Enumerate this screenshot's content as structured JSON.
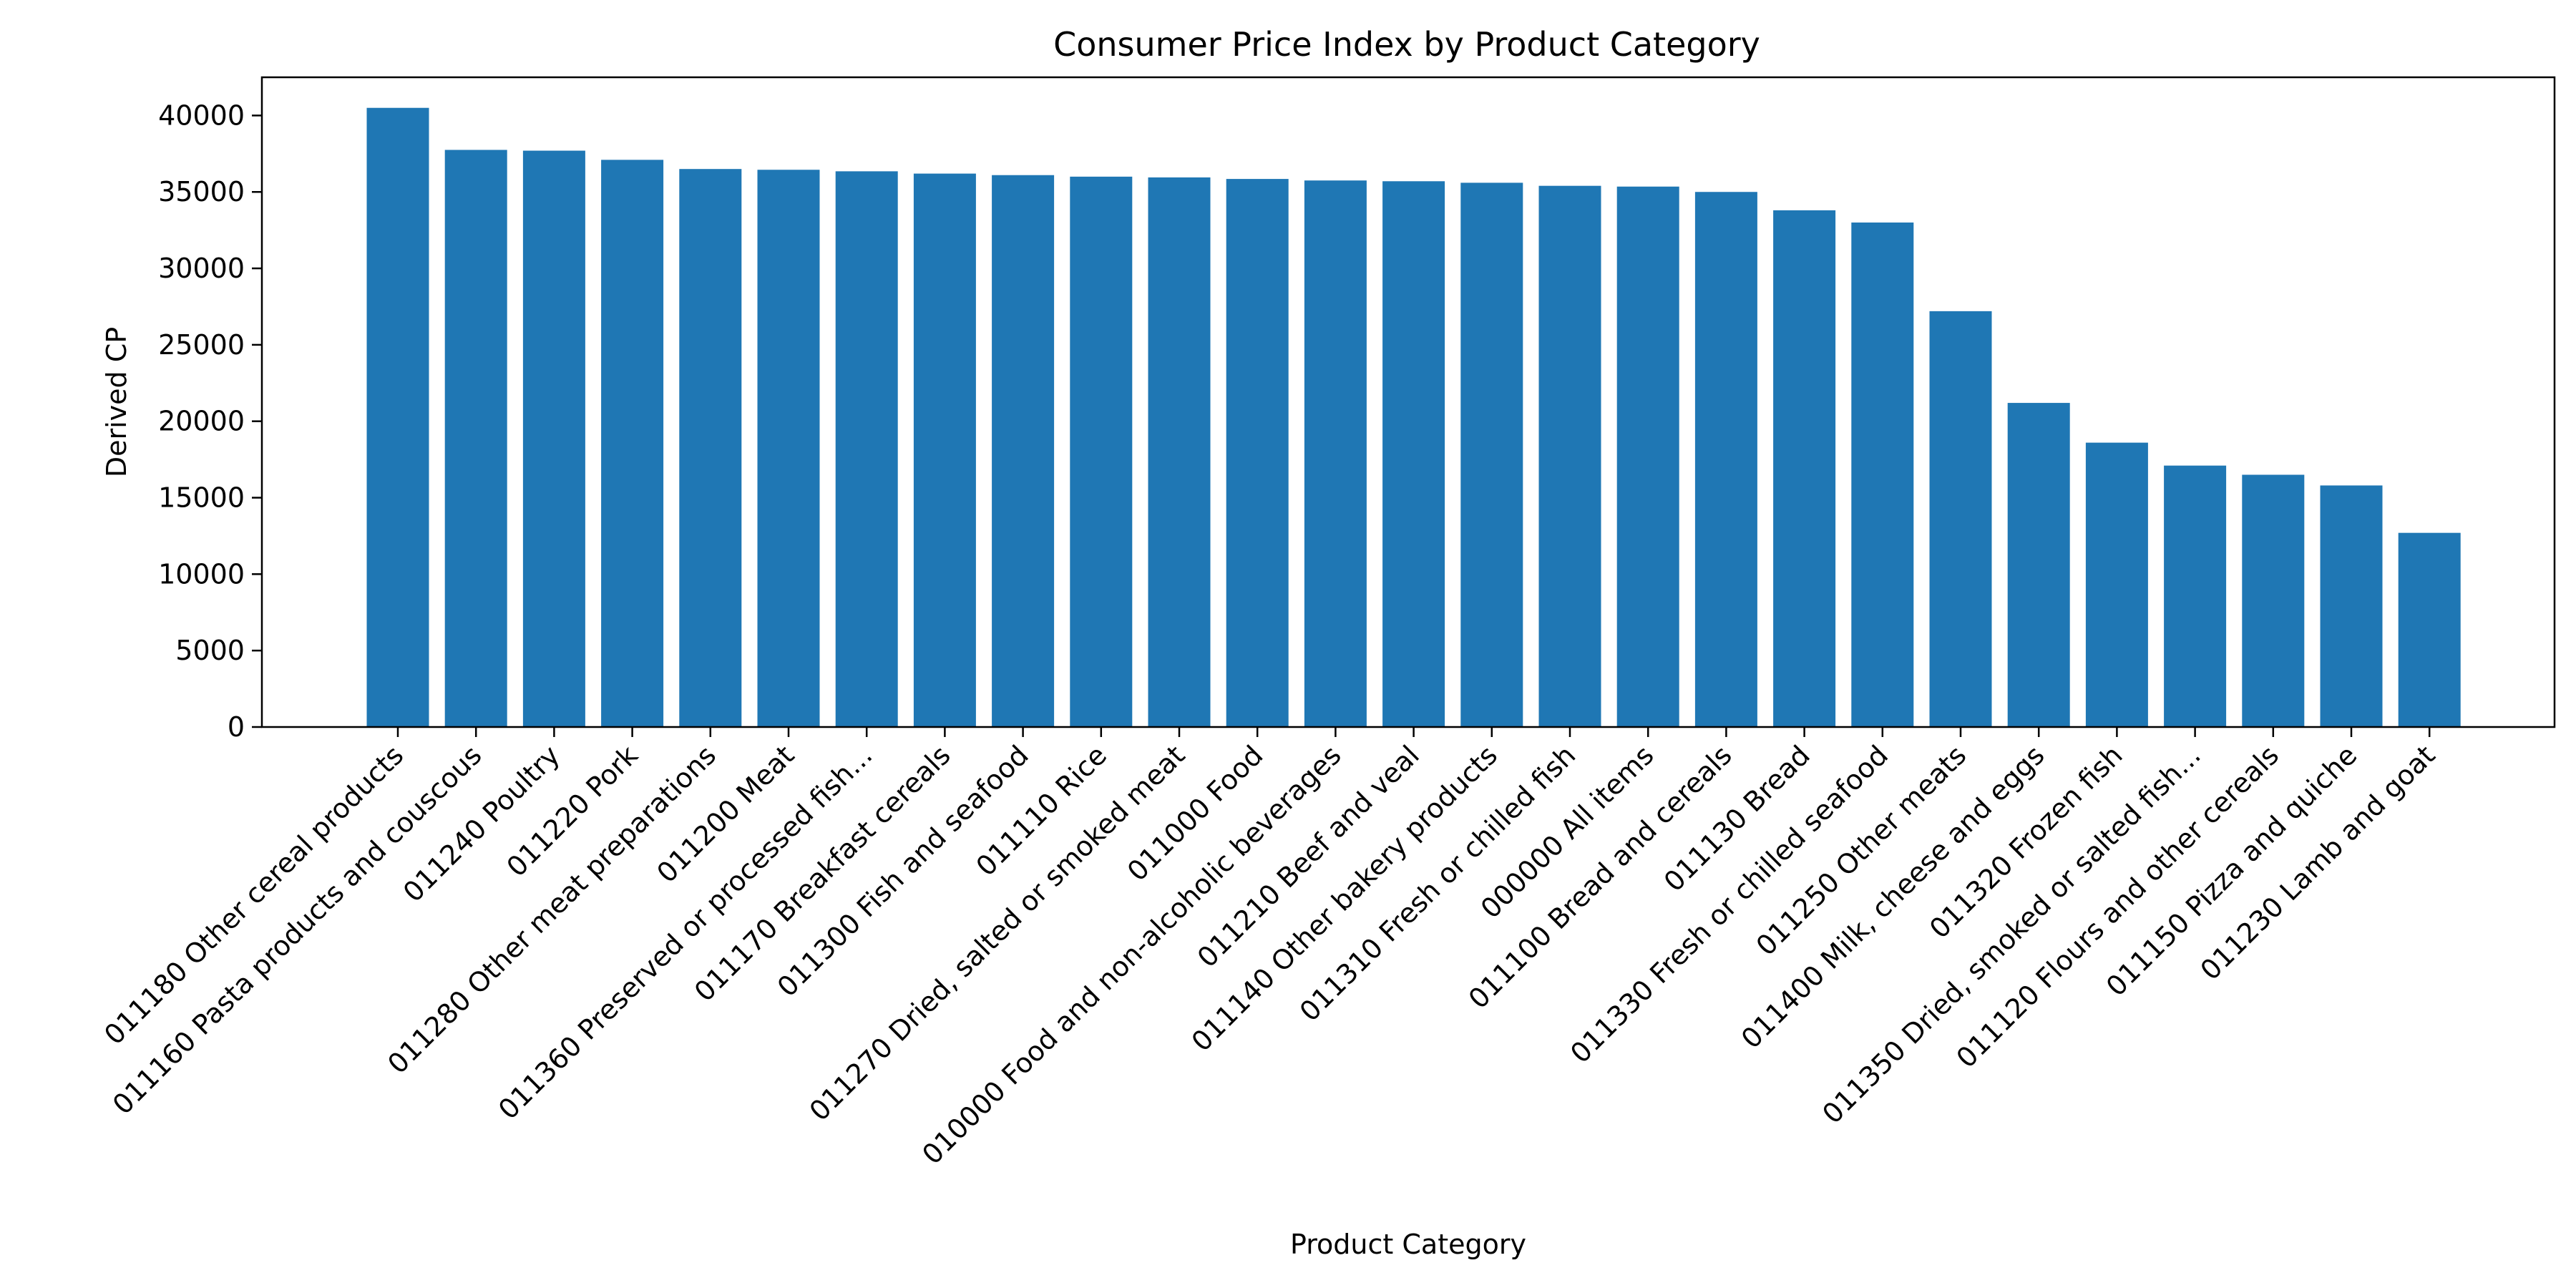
{
  "chart_data": {
    "type": "bar",
    "title": "Consumer Price Index by Product Category",
    "xlabel": "Product Category",
    "ylabel": "Derived CP",
    "ylim": [
      0,
      42500
    ],
    "yticks": [
      0,
      5000,
      10000,
      15000,
      20000,
      25000,
      30000,
      35000,
      40000
    ],
    "grid": false,
    "legend": "none",
    "bar_color": "#1f77b4",
    "categories": [
      "011180 Other cereal products",
      "011160 Pasta products and couscous",
      "011240 Poultry",
      "011220 Pork",
      "011280 Other meat preparations",
      "011200 Meat",
      "011360 Preserved or processed fish...",
      "011170 Breakfast cereals",
      "011300 Fish and seafood",
      "011110 Rice",
      "011270 Dried, salted or smoked meat",
      "011000 Food",
      "010000 Food and non-alcoholic beverages",
      "011210 Beef and veal",
      "011140 Other bakery products",
      "011310 Fresh or chilled fish",
      "000000 All items",
      "011100 Bread and cereals",
      "011130 Bread",
      "011330 Fresh or chilled seafood",
      "011250 Other meats",
      "011400 Milk, cheese and eggs",
      "011320 Frozen fish",
      "011350 Dried, smoked or salted fish...",
      "011120 Flours and other cereals",
      "011150 Pizza and quiche",
      "011230 Lamb and goat"
    ],
    "values": [
      40500,
      37750,
      37700,
      37100,
      36500,
      36450,
      36350,
      36200,
      36100,
      36000,
      35950,
      35850,
      35750,
      35700,
      35600,
      35400,
      35350,
      35000,
      33800,
      33000,
      27200,
      21200,
      18600,
      17100,
      16500,
      15800,
      12700
    ]
  }
}
